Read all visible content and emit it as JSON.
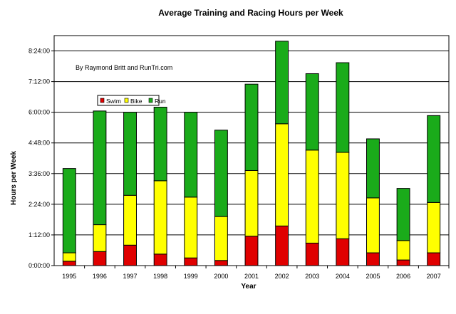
{
  "chart_data": {
    "type": "bar",
    "stacked": true,
    "title": "Average Training and Racing Hours per Week",
    "annotation": "By Raymond Britt and RunTri.com",
    "xlabel": "Year",
    "ylabel": "Hours per Week",
    "y_unit": "hours",
    "ylim": [
      0,
      9.0
    ],
    "y_ticks": [
      0,
      1.2,
      2.4,
      3.6,
      4.8,
      6.0,
      7.2,
      8.4
    ],
    "y_tick_labels": [
      "0:00:00",
      "1:12:00",
      "2:24:00",
      "3:36:00",
      "4:48:00",
      "6:00:00",
      "7:12:00",
      "8:24:00"
    ],
    "grid": "horizontal",
    "legend_position": "upper-left inside plot",
    "categories": [
      "1995",
      "1996",
      "1997",
      "1998",
      "1999",
      "2000",
      "2001",
      "2002",
      "2003",
      "2004",
      "2005",
      "2006",
      "2007"
    ],
    "series": [
      {
        "name": "Swim",
        "color": "#e00000",
        "values": [
          0.17,
          0.55,
          0.8,
          0.45,
          0.3,
          0.2,
          1.15,
          1.55,
          0.88,
          1.05,
          0.5,
          0.22,
          0.5
        ]
      },
      {
        "name": "Bike",
        "color": "#ffff00",
        "values": [
          0.33,
          1.05,
          1.95,
          2.87,
          2.38,
          1.72,
          2.57,
          4.0,
          3.64,
          3.38,
          2.15,
          0.76,
          1.97
        ]
      },
      {
        "name": "Run",
        "color": "#1aab1a",
        "values": [
          3.3,
          4.45,
          3.25,
          2.88,
          3.32,
          3.38,
          3.38,
          3.23,
          2.99,
          3.51,
          2.31,
          2.04,
          3.4
        ]
      }
    ]
  }
}
